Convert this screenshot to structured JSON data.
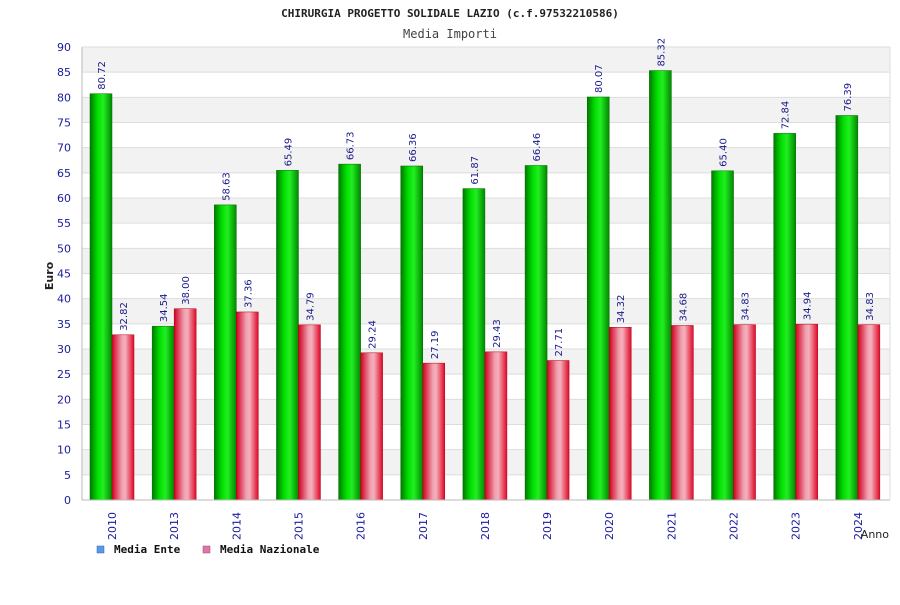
{
  "chart_data": {
    "type": "bar",
    "title": "CHIRURGIA PROGETTO SOLIDALE LAZIO (c.f.97532210586)",
    "subtitle": "Media Importi",
    "xlabel": "Anno",
    "ylabel": "Euro",
    "ylim": [
      0,
      90
    ],
    "ytick_step": 5,
    "grid": true,
    "legend": "bottom-left",
    "categories": [
      "2010",
      "2013",
      "2014",
      "2015",
      "2016",
      "2017",
      "2018",
      "2019",
      "2020",
      "2021",
      "2022",
      "2023",
      "2024"
    ],
    "series": [
      {
        "name": "Media Ente",
        "color": "#00aa00",
        "legend_color": "#5599ee",
        "values": [
          80.72,
          34.54,
          58.63,
          65.49,
          66.73,
          66.36,
          61.87,
          66.46,
          80.07,
          85.32,
          65.4,
          72.84,
          76.39
        ],
        "labels": [
          "80.72",
          "34.54",
          "58.63",
          "65.49",
          "66.73",
          "66.36",
          "61.87",
          "66.46",
          "80.07",
          "85.32",
          "65.40",
          "72.84",
          "76.39"
        ]
      },
      {
        "name": "Media Nazionale",
        "color": "#e8243c",
        "legend_color": "#dd77aa",
        "values": [
          32.82,
          38.0,
          37.36,
          34.79,
          29.24,
          27.19,
          29.43,
          27.71,
          34.32,
          34.68,
          34.83,
          34.94,
          34.83
        ],
        "labels": [
          "32.82",
          "38.00",
          "37.36",
          "34.79",
          "29.24",
          "27.19",
          "29.43",
          "27.71",
          "34.32",
          "34.68",
          "34.83",
          "34.94",
          "34.83"
        ]
      }
    ]
  }
}
